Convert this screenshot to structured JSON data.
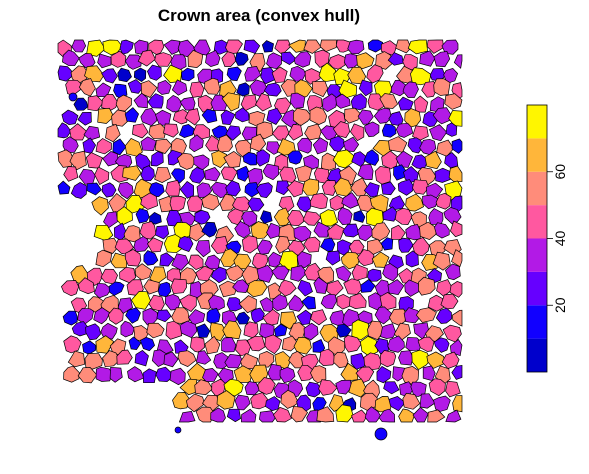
{
  "chart_data": {
    "type": "heatmap",
    "title": "Crown area (convex hull)",
    "xlabel": "",
    "ylabel": "",
    "legend": {
      "position": "right",
      "ticks": [
        "20",
        "40",
        "60"
      ],
      "tick_values": [
        20,
        40,
        60
      ],
      "range": [
        0,
        80
      ],
      "bins": [
        {
          "from": 0,
          "to": 10,
          "color": "#0000CC"
        },
        {
          "from": 10,
          "to": 20,
          "color": "#1100FF"
        },
        {
          "from": 20,
          "to": 30,
          "color": "#6600FF"
        },
        {
          "from": 30,
          "to": 40,
          "color": "#B21AE6"
        },
        {
          "from": 40,
          "to": 50,
          "color": "#FF58A0"
        },
        {
          "from": 50,
          "to": 60,
          "color": "#FF8C7A"
        },
        {
          "from": 60,
          "to": 70,
          "color": "#FFB63A"
        },
        {
          "from": 70,
          "to": 80,
          "color": "#FFF600"
        }
      ]
    },
    "value_distribution": [
      {
        "from": 0,
        "to": 10,
        "share": 0.03
      },
      {
        "from": 10,
        "to": 20,
        "share": 0.07
      },
      {
        "from": 20,
        "to": 30,
        "share": 0.14
      },
      {
        "from": 30,
        "to": 40,
        "share": 0.24
      },
      {
        "from": 40,
        "to": 50,
        "share": 0.22
      },
      {
        "from": 50,
        "to": 60,
        "share": 0.18
      },
      {
        "from": 60,
        "to": 70,
        "share": 0.08
      },
      {
        "from": 70,
        "to": 80,
        "share": 0.04
      }
    ],
    "polygon_border_color": "#000000"
  }
}
